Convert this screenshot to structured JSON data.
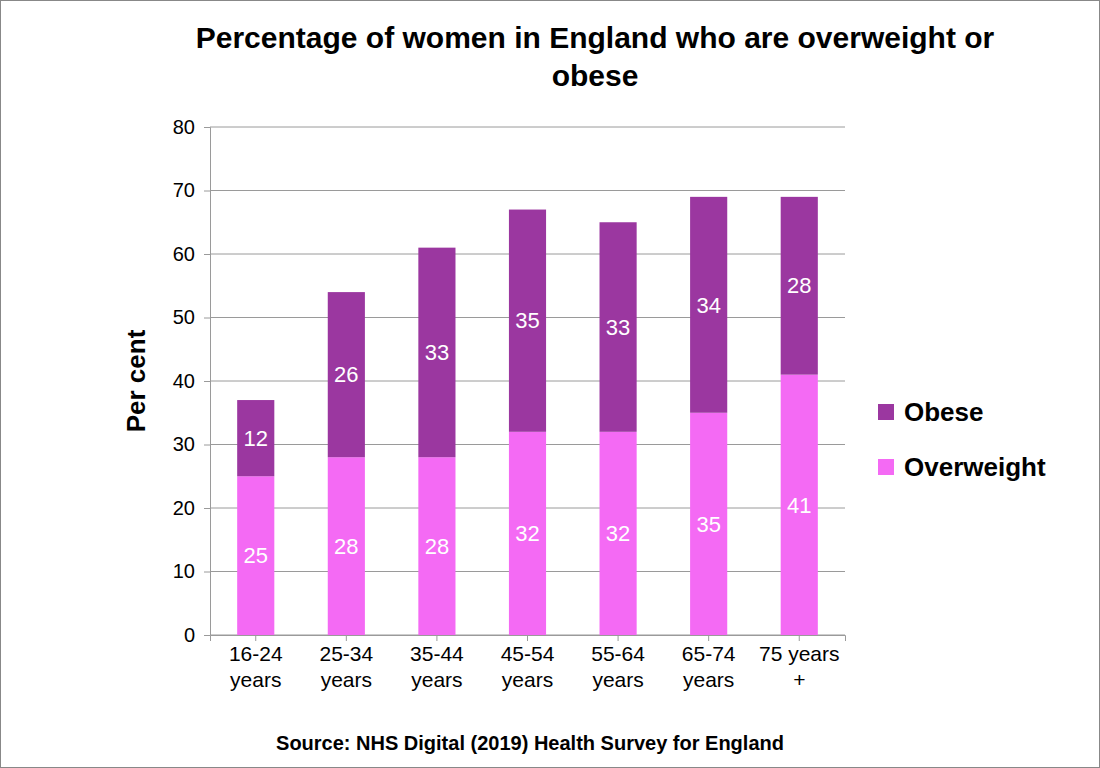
{
  "chart_data": {
    "type": "bar",
    "title": "Percentage of women in England who are overweight or obese",
    "y_label": "Per cent",
    "annotations": [
      "Source: NHS Digital (2019) Health Survey for England"
    ],
    "categories": [
      "16-24 years",
      "25-34 years",
      "35-44 years",
      "45-54 years",
      "55-64 years",
      "65-74 years",
      "75 years +"
    ],
    "series": [
      {
        "name": "Overweight",
        "color": "#f46af4",
        "values": [
          25,
          28,
          28,
          32,
          32,
          35,
          41
        ]
      },
      {
        "name": "Obese",
        "color": "#9b37a0",
        "values": [
          12,
          26,
          33,
          35,
          33,
          34,
          28
        ]
      }
    ],
    "stacked": true,
    "data_labels": true,
    "ylim": [
      0,
      80
    ],
    "yticks": [
      0,
      10,
      20,
      30,
      40,
      50,
      60,
      70,
      80
    ],
    "grid": true,
    "legend": "right"
  }
}
